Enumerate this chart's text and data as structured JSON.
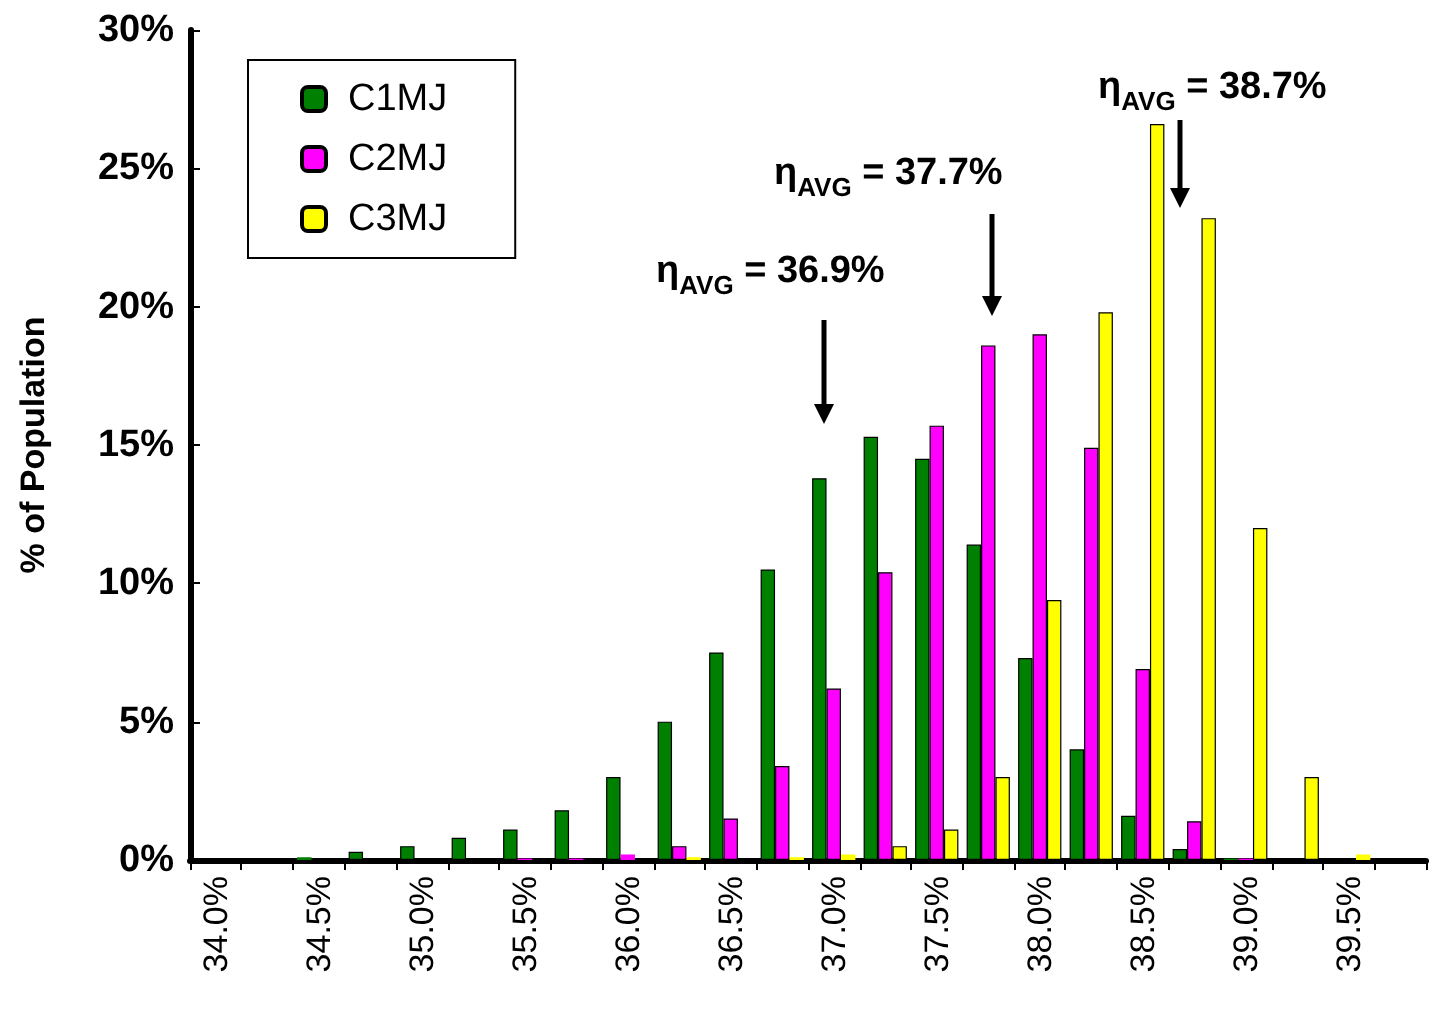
{
  "chart_data": {
    "type": "bar",
    "ylabel": "% of Population",
    "categories": [
      "34.0%",
      null,
      "34.5%",
      null,
      "35.0%",
      null,
      "35.5%",
      null,
      "36.0%",
      null,
      "36.5%",
      null,
      "37.0%",
      null,
      "37.5%",
      null,
      "38.0%",
      null,
      "38.5%",
      null,
      "39.0%",
      null,
      "39.5%",
      null
    ],
    "series": [
      {
        "name": "C1MJ",
        "color": "#008000",
        "values": [
          0,
          0,
          0.1,
          0.3,
          0.5,
          0.8,
          1.1,
          1.8,
          3.0,
          5.0,
          7.5,
          10.5,
          13.8,
          15.3,
          14.5,
          11.4,
          7.3,
          4.0,
          1.6,
          0.4,
          0.05,
          0,
          0,
          0
        ]
      },
      {
        "name": "C2MJ",
        "color": "#ff00ff",
        "values": [
          0,
          0,
          0,
          0,
          0,
          0,
          0.05,
          0.05,
          0.2,
          0.5,
          1.5,
          3.4,
          6.2,
          10.4,
          15.7,
          18.6,
          19.0,
          14.9,
          6.9,
          1.4,
          0.05,
          0,
          0,
          0
        ]
      },
      {
        "name": "C3MJ",
        "color": "#ffff00",
        "values": [
          0,
          0,
          0,
          0,
          0,
          0,
          0,
          0,
          0,
          0.1,
          0,
          0.1,
          0.2,
          0.5,
          1.1,
          3.0,
          9.4,
          19.8,
          26.6,
          23.2,
          12.0,
          3.0,
          0.2,
          0
        ]
      }
    ],
    "ylim": [
      0,
      30
    ],
    "yticks": [
      {
        "value": 0,
        "label": "0%"
      },
      {
        "value": 5,
        "label": "5%"
      },
      {
        "value": 10,
        "label": "10%"
      },
      {
        "value": 15,
        "label": "15%"
      },
      {
        "value": 20,
        "label": "20%"
      },
      {
        "value": 25,
        "label": "25%"
      },
      {
        "value": 30,
        "label": "30%"
      }
    ],
    "annotations": [
      "η$_{AVG}$ = 36.9%",
      "η$_{AVG}$ = 37.7%",
      "η$_{AVG}$ = 38.7%"
    ],
    "legend": "top left",
    "grid": false
  }
}
